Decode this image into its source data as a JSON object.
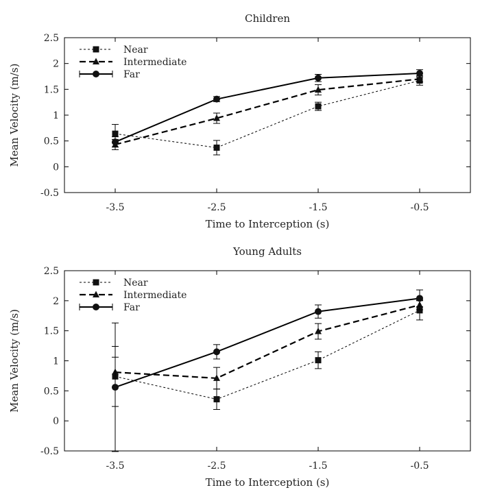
{
  "chart_data": [
    {
      "type": "line",
      "title": "Children",
      "xlabel": "Time to Interception (s)",
      "ylabel": "Mean Velocity (m/s)",
      "xlim": [
        -4.0,
        0.0
      ],
      "ylim": [
        -0.5,
        2.5
      ],
      "xticks": [
        -3.5,
        -2.5,
        -1.5,
        -0.5
      ],
      "xtick_labels": [
        "-3.5",
        "-2.5",
        "-1.5",
        "-0.5"
      ],
      "yticks": [
        -0.5,
        0,
        0.5,
        1,
        1.5,
        2,
        2.5
      ],
      "ytick_labels": [
        "-0.5",
        "0",
        "0.5",
        "1",
        "1.5",
        "2",
        "2.5"
      ],
      "legend": "top-left",
      "x": [
        -3.5,
        -2.5,
        -1.5,
        -0.5
      ],
      "series": [
        {
          "name": "Near",
          "marker": "square",
          "line": "dotted",
          "values": [
            0.64,
            0.37,
            1.17,
            1.67
          ],
          "errors": [
            0.18,
            0.14,
            0.08,
            0.09
          ]
        },
        {
          "name": "Intermediate",
          "marker": "triangle",
          "line": "dashed",
          "values": [
            0.43,
            0.94,
            1.49,
            1.7
          ],
          "errors": [
            0.1,
            0.1,
            0.1,
            0.06
          ]
        },
        {
          "name": "Far",
          "marker": "circle",
          "line": "solid",
          "values": [
            0.48,
            1.31,
            1.72,
            1.81
          ],
          "errors": [
            0.1,
            0.05,
            0.07,
            0.07
          ]
        }
      ]
    },
    {
      "type": "line",
      "title": "Young Adults",
      "xlabel": "Time to Interception (s)",
      "ylabel": "Mean Velocity (m/s)",
      "xlim": [
        -4.0,
        0.0
      ],
      "ylim": [
        -0.5,
        2.5
      ],
      "xticks": [
        -3.5,
        -2.5,
        -1.5,
        -0.5
      ],
      "xtick_labels": [
        "-3.5",
        "-2.5",
        "-1.5",
        "-0.5"
      ],
      "yticks": [
        -0.5,
        0,
        0.5,
        1,
        1.5,
        2,
        2.5
      ],
      "ytick_labels": [
        "-0.5",
        "0",
        "0.5",
        "1",
        "1.5",
        "2",
        "2.5"
      ],
      "legend": "top-left",
      "x": [
        -3.5,
        -2.5,
        -1.5,
        -0.5
      ],
      "series": [
        {
          "name": "Near",
          "marker": "square",
          "line": "dotted",
          "values": [
            0.74,
            0.36,
            1.01,
            1.84
          ],
          "errors": [
            0.5,
            0.17,
            0.14,
            0.16
          ]
        },
        {
          "name": "Intermediate",
          "marker": "triangle",
          "line": "dashed",
          "values": [
            0.81,
            0.71,
            1.49,
            1.93
          ],
          "errors": [
            0.25,
            0.18,
            0.13,
            0.08
          ]
        },
        {
          "name": "Far",
          "marker": "circle",
          "line": "solid",
          "values": [
            0.56,
            1.15,
            1.82,
            2.04
          ],
          "errors": [
            1.07,
            0.12,
            0.11,
            0.14
          ]
        }
      ]
    }
  ]
}
